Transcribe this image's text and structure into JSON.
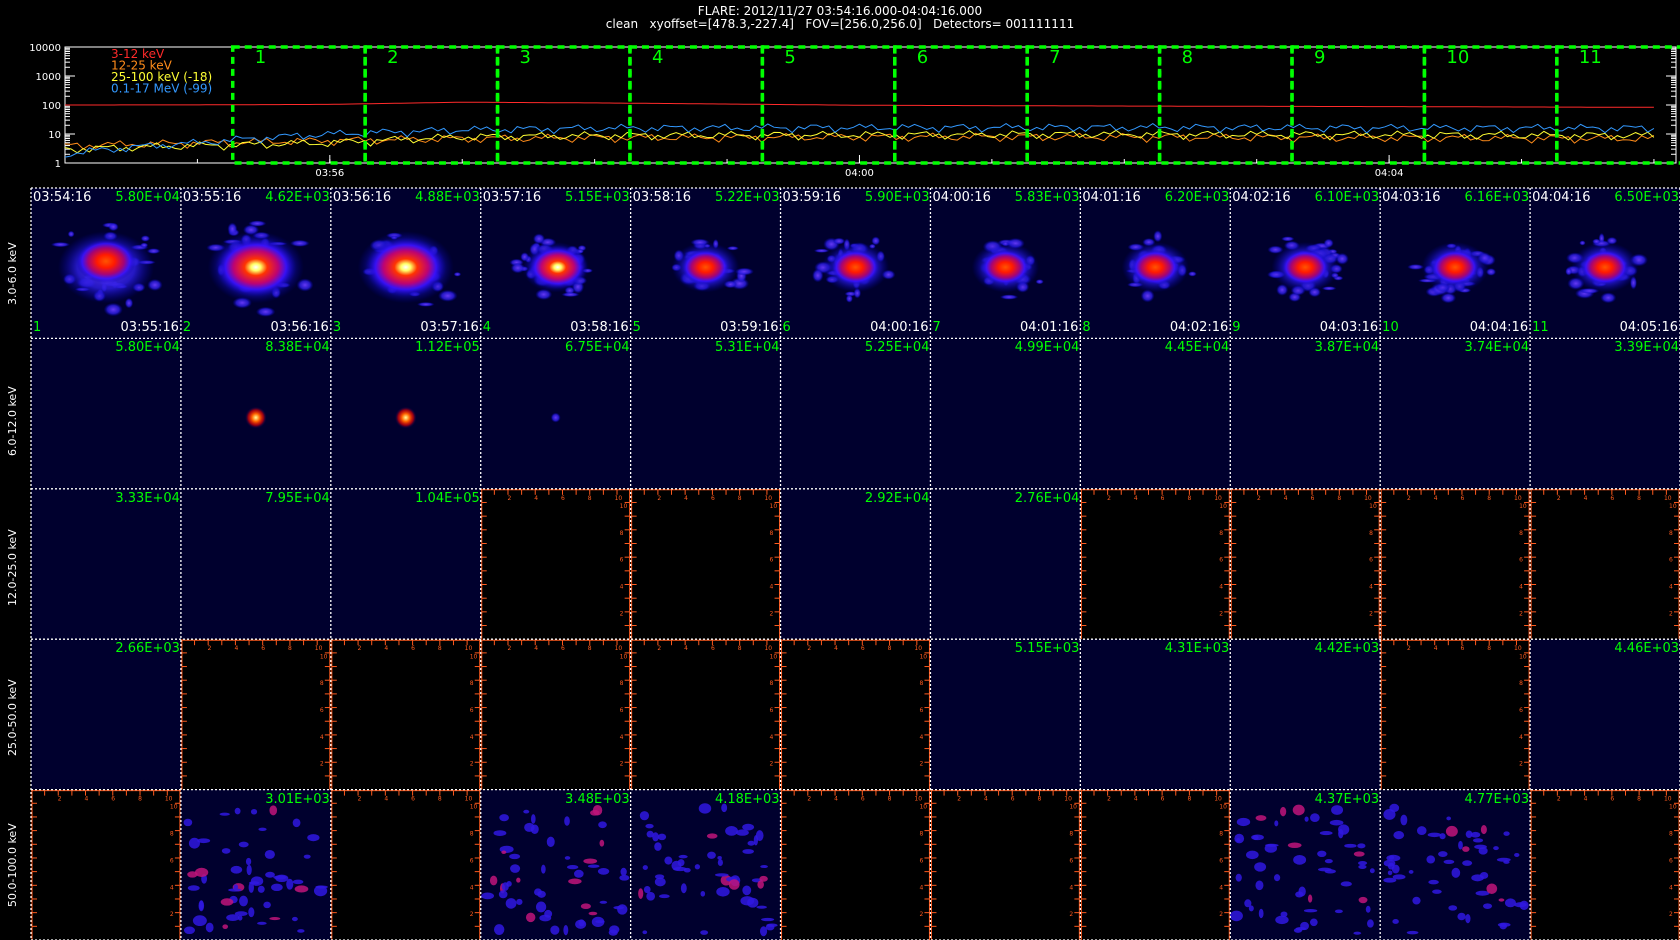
{
  "header": {
    "line1": "FLARE: 2012/11/27 03:54:16.000-04:04:16.000",
    "line2": "clean   xyoffset=[478.3,-227.4]   FOV=[256.0,256.0]   Detectors= 001111111"
  },
  "chart_data": {
    "type": "line",
    "yscale": "log",
    "ylim": [
      1,
      10000
    ],
    "yticks": [
      "10000",
      "1000",
      "100",
      "10",
      "1"
    ],
    "xlim": [
      "03:54:00",
      "04:06:10"
    ],
    "xticks": [
      "03:56",
      "04:00",
      "04:04"
    ],
    "legend": [
      {
        "label": "3-12 keV",
        "color": "#ff2a2a"
      },
      {
        "label": "12-25 keV",
        "color": "#ff8c1a"
      },
      {
        "label": "25-100 keV (-18)",
        "color": "#ffff33"
      },
      {
        "label": "0.1-17 MeV (-99)",
        "color": "#3399ff"
      }
    ],
    "interval_labels": [
      "1",
      "2",
      "3",
      "4",
      "5",
      "6",
      "7",
      "8",
      "9",
      "10",
      "11"
    ],
    "interval_start_times": [
      "03:55:16",
      "03:56:16",
      "03:57:16",
      "03:58:16",
      "03:59:16",
      "04:00:16",
      "04:01:16",
      "04:02:16",
      "04:03:16",
      "04:04:16",
      "04:05:16"
    ],
    "series": [
      {
        "name": "3-12 keV",
        "x": [
          "03:54:00",
          "03:55:00",
          "03:56:00",
          "03:57:00",
          "03:58:00",
          "04:00:00",
          "04:02:00",
          "04:04:00",
          "04:06:00"
        ],
        "y": [
          100,
          101,
          105,
          125,
          118,
          98,
          92,
          88,
          83
        ]
      },
      {
        "name": "12-25 keV",
        "x": [
          "03:54:00",
          "03:55:00",
          "03:56:00",
          "03:57:00",
          "03:58:00",
          "04:00:00",
          "04:02:00",
          "04:04:00",
          "04:06:00"
        ],
        "y": [
          4,
          5,
          6,
          7,
          7.5,
          8,
          8,
          7.5,
          7
        ]
      },
      {
        "name": "25-100 keV (-18)",
        "x": [
          "03:54:00",
          "03:55:00",
          "03:56:00",
          "03:57:00",
          "03:58:00",
          "04:00:00",
          "04:02:00",
          "04:04:00",
          "04:06:00"
        ],
        "y": [
          3,
          4,
          5,
          8,
          9,
          9.5,
          10,
          9.5,
          9
        ]
      },
      {
        "name": "0.1-17 MeV (-99)",
        "x": [
          "03:54:00",
          "03:55:00",
          "03:56:00",
          "03:57:00",
          "03:58:00",
          "04:00:00",
          "04:02:00",
          "04:04:00",
          "04:06:00"
        ],
        "y": [
          2,
          5,
          10,
          14,
          16,
          17,
          17,
          16.5,
          16
        ]
      }
    ]
  },
  "grid": {
    "row_labels": [
      "3.0-6.0 keV",
      "6.0-12.0 keV",
      "12.0-25.0 keV",
      "25.0-50.0 keV",
      "50.0-100.0 keV"
    ],
    "column_start_times": [
      "03:54:16",
      "03:55:16",
      "03:56:16",
      "03:57:16",
      "03:58:16",
      "03:59:16",
      "04:00:16",
      "04:01:16",
      "04:02:16",
      "04:03:16",
      "04:04:16"
    ],
    "column_end_times": [
      "03:55:16",
      "03:56:16",
      "03:57:16",
      "03:58:16",
      "03:59:16",
      "04:00:16",
      "04:01:16",
      "04:02:16",
      "04:03:16",
      "04:04:16",
      "04:05:16"
    ],
    "column_index_labels": [
      "1",
      "2",
      "3",
      "4",
      "5",
      "6",
      "7",
      "8",
      "9",
      "10",
      "11"
    ],
    "peak_values": [
      [
        "5.80E+04",
        "4.62E+03",
        "4.88E+03",
        "5.15E+03",
        "5.22E+03",
        "5.90E+03",
        "5.83E+03",
        "6.20E+03",
        "6.10E+03",
        "6.16E+03",
        "6.50E+03"
      ],
      [
        "5.80E+04",
        "8.38E+04",
        "1.12E+05",
        "6.75E+04",
        "5.31E+04",
        "5.25E+04",
        "4.99E+04",
        "4.45E+04",
        "3.87E+04",
        "3.74E+04",
        "3.39E+04"
      ],
      [
        "3.33E+04",
        "7.95E+04",
        "1.04E+05",
        "",
        "",
        "2.92E+04",
        "2.76E+04",
        "",
        "",
        "",
        ""
      ],
      [
        "2.66E+03",
        "",
        "",
        "",
        "",
        "",
        "5.15E+03",
        "4.31E+03",
        "4.42E+03",
        "",
        "4.46E+03"
      ],
      [
        "",
        "3.01E+03",
        "",
        "3.48E+03",
        "4.18E+03",
        "",
        "",
        "",
        "4.37E+03",
        "4.77E+03",
        ""
      ]
    ],
    "tile_kind": [
      [
        "source",
        "source",
        "source",
        "source",
        "source",
        "source",
        "source",
        "source",
        "source",
        "source",
        "source"
      ],
      [
        "blank",
        "compact",
        "compact",
        "compact",
        "blank",
        "blank",
        "blank",
        "blank",
        "blank",
        "blank",
        "blank"
      ],
      [
        "blank",
        "blank",
        "blank",
        "empty",
        "empty",
        "blank",
        "blank",
        "empty",
        "empty",
        "empty",
        "empty"
      ],
      [
        "blank",
        "empty",
        "empty",
        "empty",
        "empty",
        "empty",
        "blank",
        "blank",
        "blank",
        "empty",
        "blank"
      ],
      [
        "empty",
        "noise",
        "empty",
        "noise",
        "noise",
        "empty",
        "empty",
        "empty",
        "noise",
        "noise",
        "empty"
      ]
    ],
    "empty_axis_ticks": [
      "2",
      "4",
      "6",
      "8",
      "10"
    ],
    "colors": {
      "tile_bg": "#00002e",
      "empty_bg": "#000000",
      "empty_axis": "#ff5a1e",
      "grid_line": "#ffffff",
      "peak_label": "#00ff00",
      "interval_box": "#00ff00"
    }
  }
}
